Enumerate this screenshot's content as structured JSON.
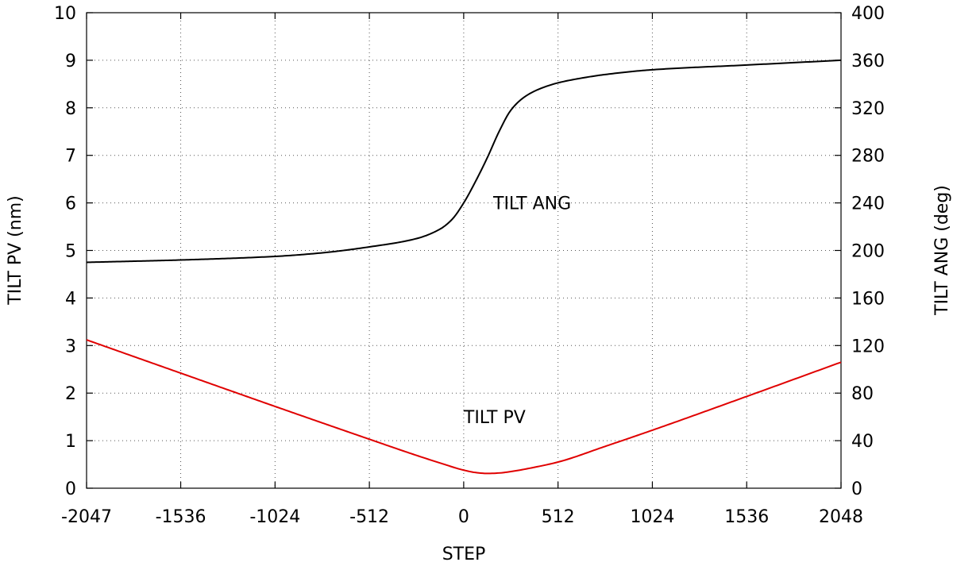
{
  "chart_data": {
    "type": "line",
    "title": "",
    "xlabel": "STEP",
    "ylabel": "TILT  PV   (nm)",
    "y2label": "TILT ANG   (deg)",
    "xlim": [
      -2047,
      2048
    ],
    "ylim": [
      0,
      10
    ],
    "y2lim": [
      0,
      400
    ],
    "grid": true,
    "x_ticks": [
      -2047,
      -1536,
      -1024,
      -512,
      0,
      512,
      1024,
      1536,
      2048
    ],
    "x_tick_labels": [
      "-2047",
      "-1536",
      "-1024",
      "-512",
      "0",
      "512",
      "1024",
      "1536",
      "2048"
    ],
    "y_ticks": [
      0,
      1,
      2,
      3,
      4,
      5,
      6,
      7,
      8,
      9,
      10
    ],
    "y_tick_labels": [
      "0",
      "1",
      "2",
      "3",
      "4",
      "5",
      "6",
      "7",
      "8",
      "9",
      "10"
    ],
    "y2_ticks": [
      0,
      40,
      80,
      120,
      160,
      200,
      240,
      280,
      320,
      360,
      400
    ],
    "y2_tick_labels": [
      "0",
      "40",
      "80",
      "120",
      "160",
      "200",
      "240",
      "280",
      "320",
      "360",
      "400"
    ],
    "series": [
      {
        "name": "TILT  ANG",
        "axis": "y2",
        "color": "#000000",
        "x": [
          -2047,
          -1536,
          -1024,
          -768,
          -512,
          -256,
          -128,
          -64,
          0,
          64,
          128,
          192,
          256,
          320,
          384,
          448,
          512,
          640,
          768,
          1024,
          1536,
          2048
        ],
        "values": [
          190,
          192,
          195,
          198,
          203,
          210,
          218,
          226,
          240,
          258,
          278,
          300,
          318,
          328,
          334,
          338,
          341,
          345,
          348,
          352,
          356,
          360
        ]
      },
      {
        "name": "TILT  PV",
        "axis": "y",
        "color": "#e00000",
        "x": [
          -2047,
          -1536,
          -1024,
          -512,
          -256,
          -128,
          0,
          64,
          128,
          192,
          256,
          384,
          512,
          768,
          1024,
          1536,
          2048
        ],
        "values": [
          3.12,
          2.42,
          1.72,
          1.03,
          0.69,
          0.53,
          0.38,
          0.33,
          0.31,
          0.32,
          0.35,
          0.44,
          0.55,
          0.88,
          1.22,
          1.93,
          2.65
        ]
      }
    ],
    "annotations": [
      {
        "text": "TILT  ANG",
        "x": 160,
        "y": 6.0
      },
      {
        "text": "TILT  PV",
        "x": 0,
        "y": 1.5
      }
    ]
  }
}
